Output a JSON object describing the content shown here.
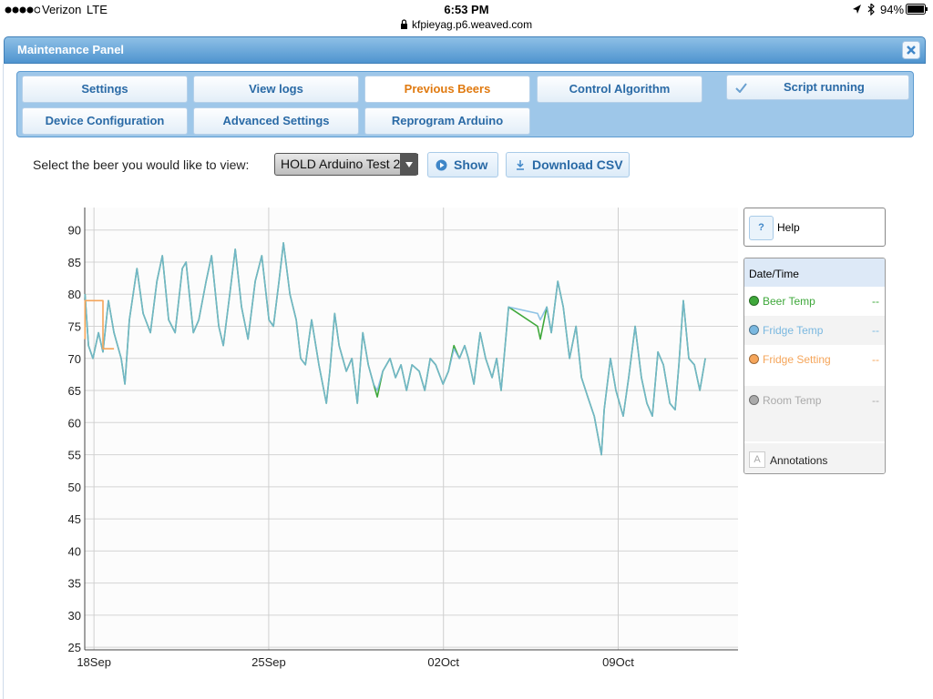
{
  "status_bar": {
    "carrier": "Verizon",
    "network": "LTE",
    "time": "6:53 PM",
    "url": "kfpieyag.p6.weaved.com",
    "battery": "94%"
  },
  "panel": {
    "title": "Maintenance Panel",
    "tabs": [
      "Settings",
      "View logs",
      "Previous Beers",
      "Control Algorithm",
      "Device Configuration",
      "Advanced Settings",
      "Reprogram Arduino"
    ],
    "status": "Script running"
  },
  "selector": {
    "label": "Select the beer you would like to view:",
    "selected": "HOLD Arduino Test 2",
    "show_button": "Show",
    "download_button": "Download CSV"
  },
  "legend": {
    "help_icon": "?",
    "help": "Help",
    "header": "Date/Time",
    "annotation_icon": "A",
    "annotations": "Annotations"
  },
  "chart_data": {
    "type": "line",
    "x": [
      -0.36,
      -0.22,
      -0.04,
      0.18,
      0.36,
      0.58,
      0.8,
      1.09,
      1.24,
      1.42,
      1.72,
      1.97,
      2.26,
      2.52,
      2.74,
      2.99,
      3.25,
      3.54,
      3.69,
      3.98,
      4.2,
      4.49,
      4.71,
      5.0,
      5.18,
      5.44,
      5.66,
      5.91,
      6.17,
      6.46,
      6.72,
      7.01,
      7.19,
      7.41,
      7.59,
      7.85,
      8.1,
      8.28,
      8.47,
      8.72,
      9.01,
      9.31,
      9.45,
      9.64,
      9.82,
      10.11,
      10.33,
      10.55,
      10.77,
      10.99,
      11.2,
      11.35,
      11.57,
      11.86,
      12.08,
      12.3,
      12.52,
      12.74,
      13.03,
      13.25,
      13.47,
      13.69,
      13.98,
      14.2,
      14.42,
      14.64,
      14.85,
      15.0,
      15.22,
      15.47,
      15.69,
      15.95,
      16.13,
      16.31,
      16.61,
      17.77,
      17.88,
      18.14,
      18.32,
      18.58,
      18.8,
      19.05,
      19.31,
      19.53,
      19.78,
      20.04,
      20.33,
      20.44,
      20.69,
      20.91,
      21.2,
      21.42,
      21.68,
      21.93,
      22.15,
      22.37,
      22.59,
      22.81,
      23.07,
      23.28,
      23.43,
      23.61,
      23.83,
      24.05,
      24.27,
      24.49
    ],
    "series": [
      {
        "name": "Beer Temp",
        "color": "#3fa83b",
        "readout": "--",
        "values": [
          80,
          72,
          70,
          74,
          71,
          79,
          74,
          70,
          66,
          76,
          84,
          77,
          74,
          82,
          86,
          76,
          74,
          84,
          85,
          74,
          76,
          82,
          86,
          75,
          72,
          80,
          87,
          78,
          73,
          82,
          86,
          76,
          75,
          82,
          88,
          80,
          76,
          70,
          69,
          76,
          69,
          63,
          68,
          77,
          72,
          68,
          70,
          63,
          74,
          69,
          66,
          64,
          68,
          70,
          67,
          69,
          65,
          69,
          68,
          65,
          70,
          69,
          66,
          68,
          72,
          70,
          72,
          70,
          66,
          74,
          70,
          67,
          70,
          65,
          78,
          75,
          73,
          78,
          74,
          82,
          78,
          70,
          75,
          67,
          64,
          61,
          55,
          62,
          70,
          65,
          61,
          67,
          75,
          67,
          63,
          61,
          71,
          69,
          63,
          62,
          69,
          79,
          70,
          69,
          65,
          70
        ]
      },
      {
        "name": "Fridge Temp",
        "color": "#7ab8e0",
        "readout": "--",
        "values": [
          80,
          72,
          70,
          74,
          71,
          79,
          74,
          70,
          66,
          76,
          84,
          77,
          74,
          82,
          86,
          76,
          74,
          84,
          85,
          74,
          76,
          82,
          86,
          75,
          72,
          80,
          87,
          78,
          73,
          82,
          86,
          76,
          75,
          82,
          88,
          80,
          76,
          70,
          69,
          76,
          69,
          63,
          68,
          77,
          72,
          68,
          70,
          63,
          74,
          69,
          66,
          65,
          68,
          70,
          67,
          69,
          65,
          69,
          68,
          65,
          70,
          69,
          66,
          68,
          71.5,
          70,
          72,
          70,
          66,
          74,
          70,
          67,
          70,
          65,
          78,
          77,
          76,
          78,
          74,
          82,
          78,
          70,
          75,
          67,
          64,
          61,
          55,
          62,
          70,
          65,
          61,
          67,
          75,
          67,
          63,
          61,
          71,
          69,
          63,
          62,
          69,
          79,
          70,
          69,
          65,
          70
        ]
      },
      {
        "name": "Fridge Setting",
        "color": "#f5a55a",
        "readout": "--",
        "x": [
          -0.36,
          -0.36,
          0.36,
          0.36,
          0.8
        ],
        "values": [
          73,
          79,
          79,
          71.5,
          71.5
        ]
      },
      {
        "name": "Room Temp",
        "color": "#aaaaaa",
        "readout": "--",
        "x": [],
        "values": []
      }
    ],
    "xlim": [
      -0.37,
      25.8
    ],
    "xticks": [
      {
        "value": 0,
        "label": "18Sep"
      },
      {
        "value": 7,
        "label": "25Sep"
      },
      {
        "value": 14,
        "label": "02Oct"
      },
      {
        "value": 21,
        "label": "09Oct"
      }
    ],
    "ylim": [
      24.6,
      93.5
    ],
    "yticks": [
      25,
      30,
      35,
      40,
      45,
      50,
      55,
      60,
      65,
      70,
      75,
      80,
      85,
      90
    ],
    "grid": true
  }
}
